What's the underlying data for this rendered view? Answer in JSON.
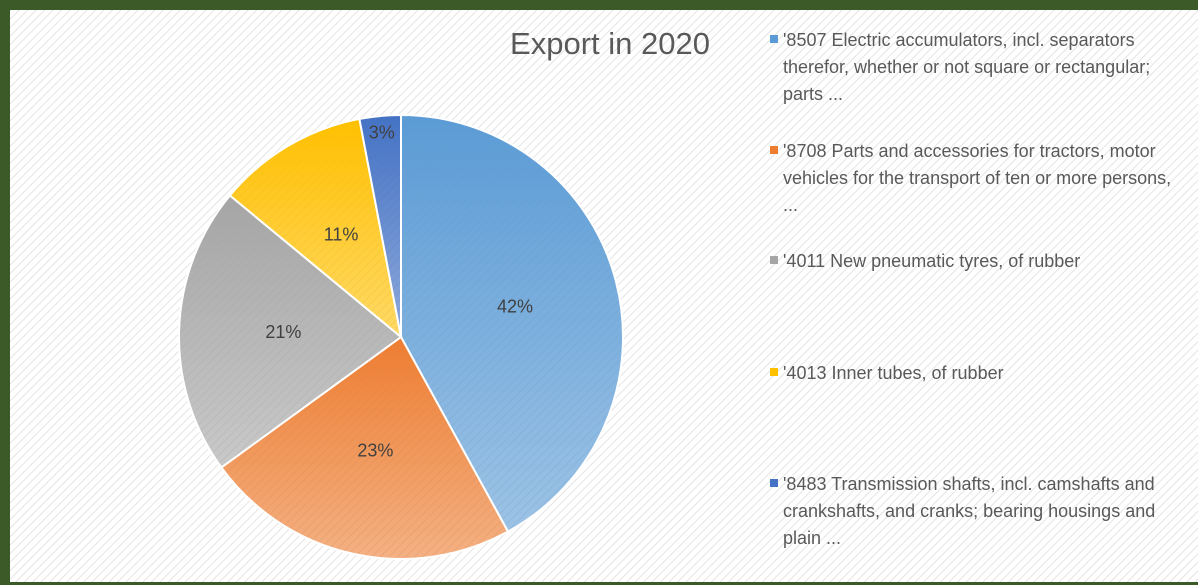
{
  "chart_data": {
    "type": "pie",
    "title": "Export in 2020",
    "categories": [
      "'8507 Electric accumulators, incl. separators therefor, whether or not square or rectangular; parts ...",
      "'8708 Parts and accessories for tractors, motor vehicles for the transport of ten or more persons, ...",
      "'4011 New pneumatic tyres, of rubber",
      "'4013 Inner tubes, of rubber",
      "'8483 Transmission shafts, incl. camshafts and crankshafts, and cranks; bearing housings and plain ..."
    ],
    "values": [
      42,
      23,
      21,
      11,
      3
    ],
    "value_labels": [
      "42%",
      "23%",
      "21%",
      "11%",
      "3%"
    ],
    "colors": [
      "#5b9bd5",
      "#ed7d31",
      "#a5a5a5",
      "#ffc000",
      "#4472c4"
    ],
    "legend": "right"
  }
}
